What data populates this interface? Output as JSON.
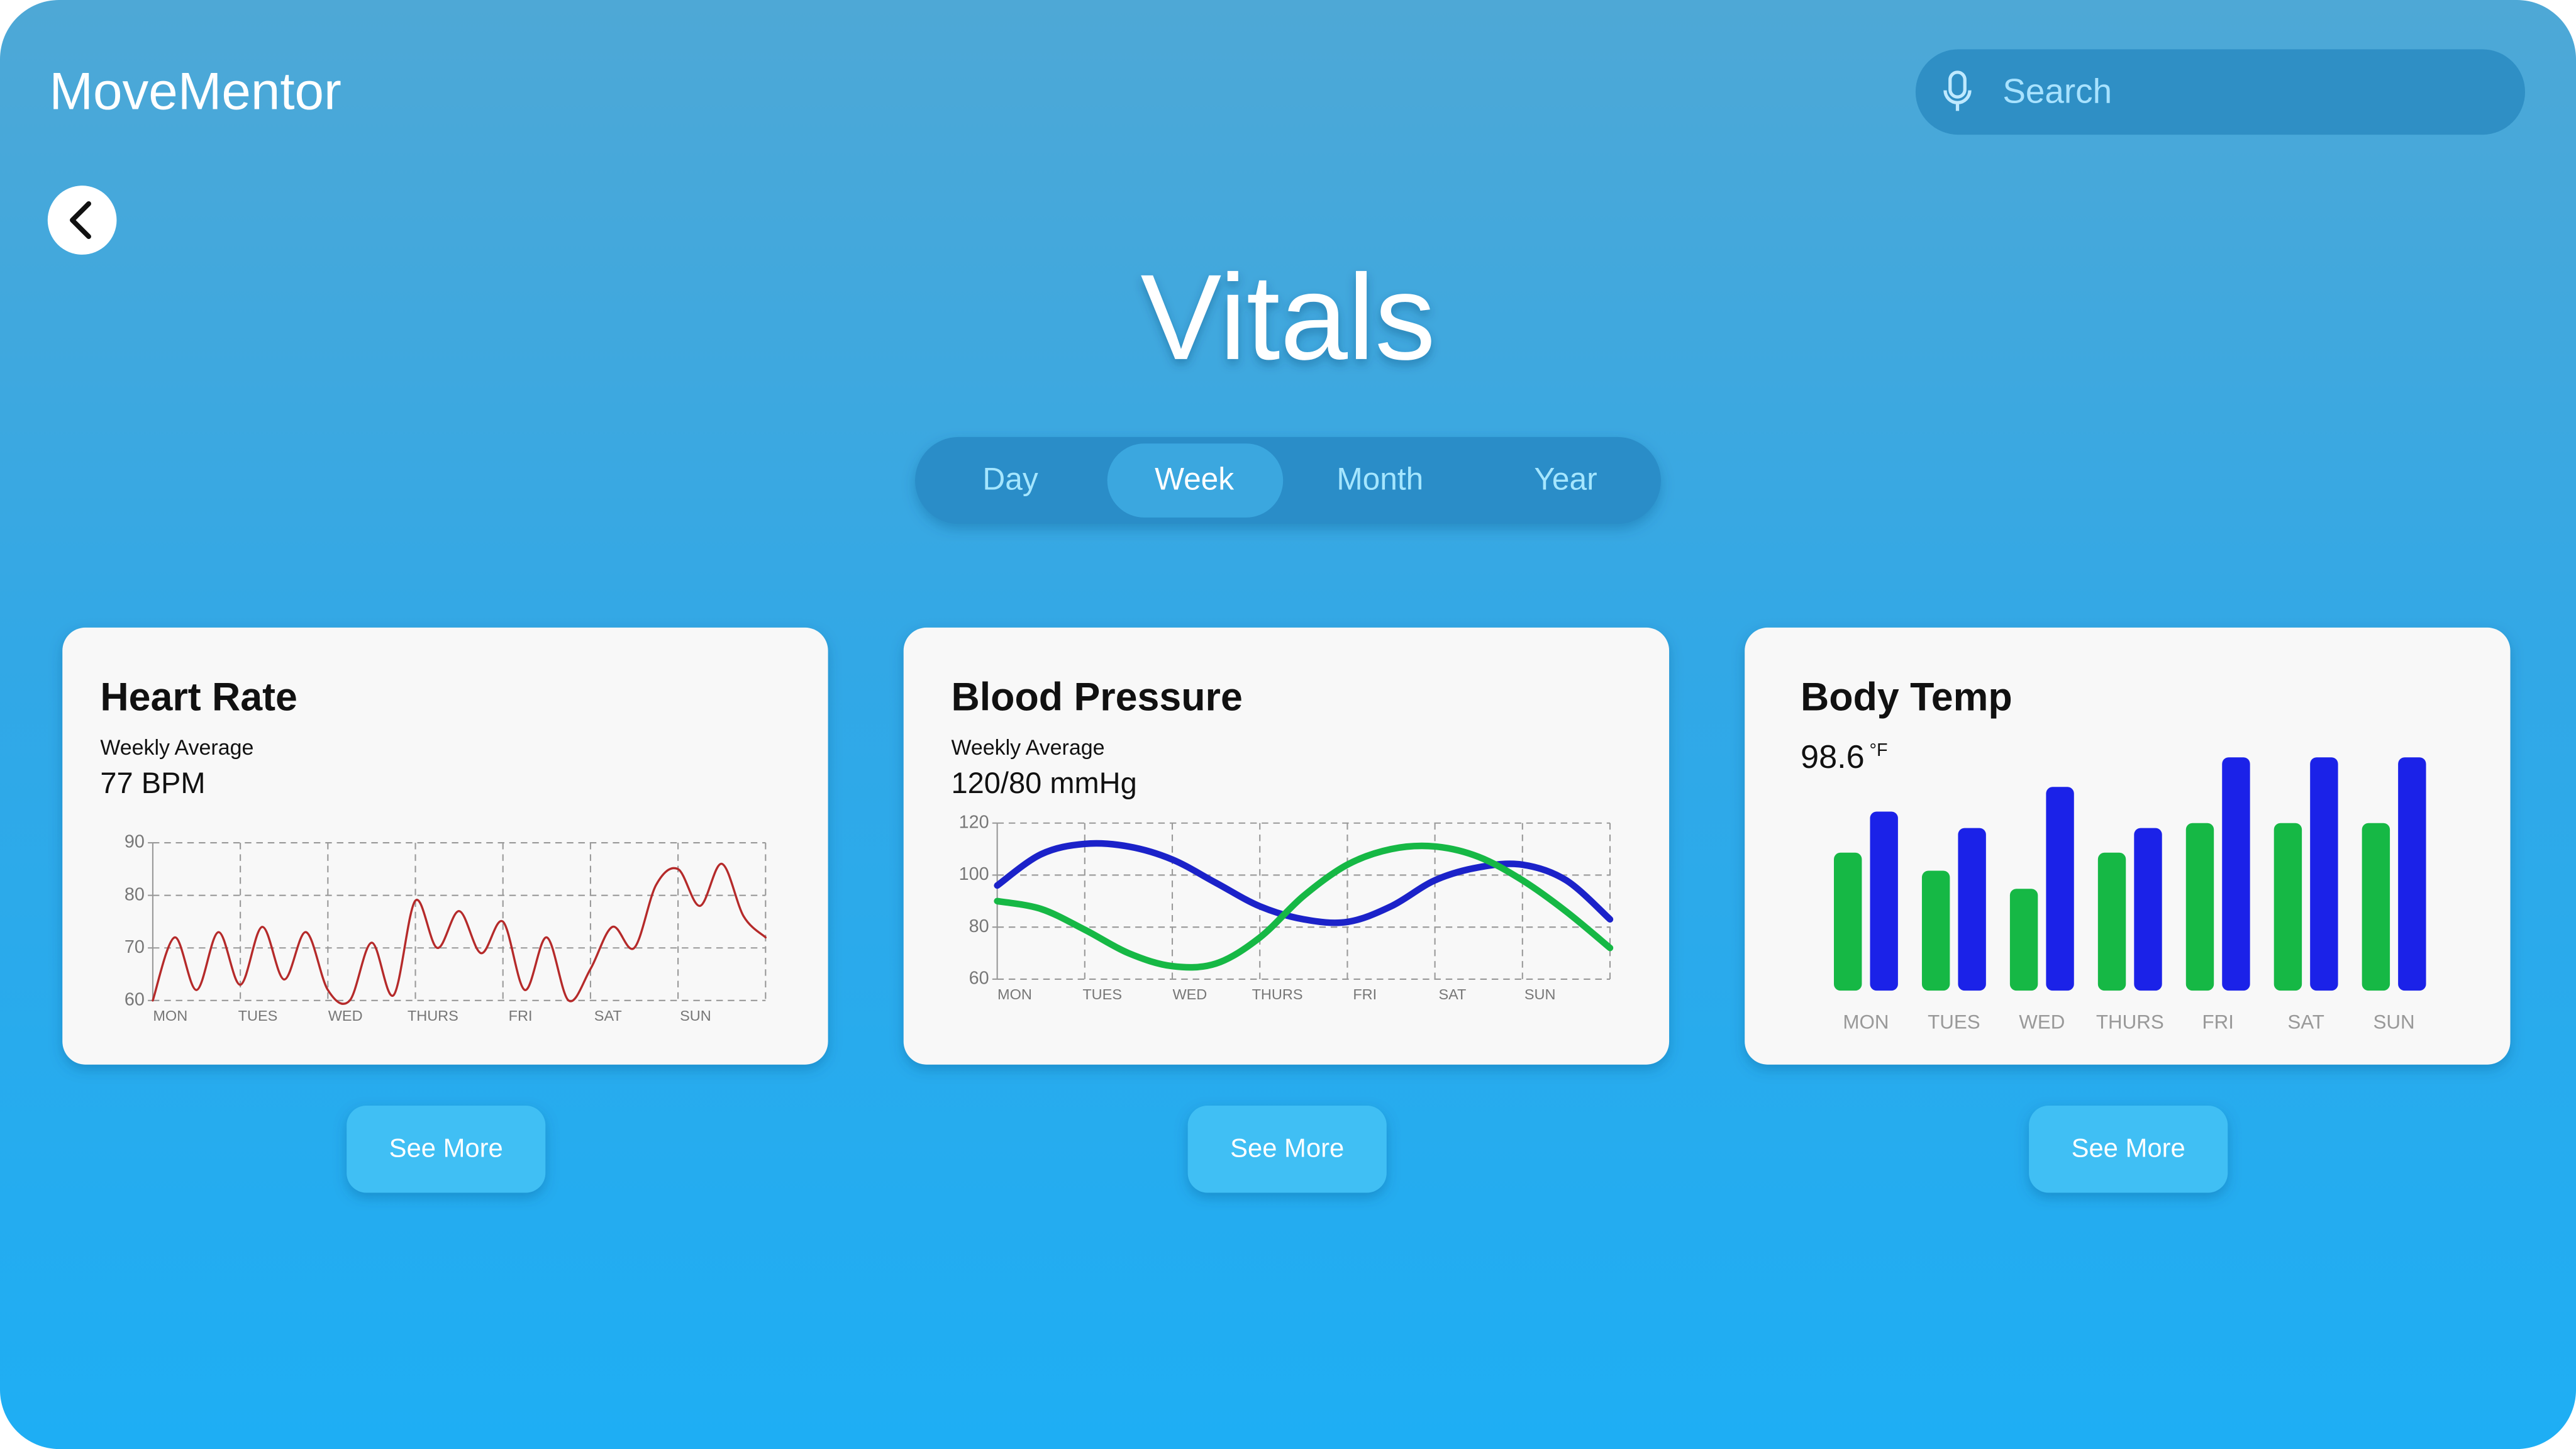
{
  "app_name": "MoveMentor",
  "search_placeholder": "Search",
  "page_title": "Vitals",
  "tabs": [
    "Day",
    "Week",
    "Month",
    "Year"
  ],
  "selected_tab": 1,
  "cards": [
    {
      "title": "Heart Rate",
      "subtitle": "Weekly Average",
      "value": "77 BPM",
      "button": "See More",
      "chart_data": {
        "type": "line",
        "categories": [
          "MON",
          "TUES",
          "WED",
          "THURS",
          "FRI",
          "SAT",
          "SUN"
        ],
        "x": [
          0,
          0.25,
          0.5,
          0.75,
          1,
          1.25,
          1.5,
          1.75,
          2,
          2.25,
          2.5,
          2.75,
          3,
          3.25,
          3.5,
          3.75,
          4,
          4.25,
          4.5,
          4.75,
          5,
          5.25,
          5.5,
          5.75,
          6,
          6.25,
          6.5,
          6.75,
          7
        ],
        "xlim": [
          0,
          7
        ],
        "series": [
          {
            "color": "#b52a2a",
            "values": [
              60,
              72,
              62,
              73,
              63,
              74,
              64,
              73,
              62,
              60,
              71,
              61,
              79,
              70,
              77,
              69,
              75,
              62,
              72,
              60,
              66,
              74,
              70,
              82,
              85,
              78,
              86,
              76,
              72
            ]
          }
        ],
        "ylim": [
          60,
          90
        ],
        "yticks": [
          60,
          70,
          80,
          90
        ],
        "grid": true
      }
    },
    {
      "title": "Blood Pressure",
      "subtitle": "Weekly Average",
      "value": "120/80 mmHg",
      "button": "See More",
      "chart_data": {
        "type": "line",
        "categories": [
          "MON",
          "TUES",
          "WED",
          "THURS",
          "FRI",
          "SAT",
          "SUN"
        ],
        "x": [
          0,
          0.5,
          1,
          1.5,
          2,
          2.5,
          3,
          3.5,
          4,
          4.5,
          5,
          5.5,
          6,
          6.5,
          7
        ],
        "xlim": [
          0,
          7
        ],
        "series": [
          {
            "color": "#1b22c9",
            "values": [
              96,
              108,
              112,
              111,
              106,
              97,
              88,
              83,
              82,
              88,
              98,
              103,
              104,
              98,
              83
            ]
          },
          {
            "color": "#16b845",
            "values": [
              90,
              87,
              79,
              70,
              65,
              66,
              76,
              92,
              104,
              110,
              111,
              107,
              98,
              86,
              72
            ]
          }
        ],
        "ylim": [
          60,
          120
        ],
        "yticks": [
          60,
          80,
          100,
          120
        ],
        "grid": true
      }
    },
    {
      "title": "Body Temp",
      "value": "98.6",
      "unit": "°F",
      "button": "See More",
      "chart_data": {
        "type": "bar",
        "categories": [
          "MON",
          "TUES",
          "WED",
          "THURS",
          "FRI",
          "SAT",
          "SUN"
        ],
        "series": [
          {
            "color": "#16b845",
            "values": [
              84,
              73,
              62,
              84,
              102,
              102,
              102
            ]
          },
          {
            "color": "#1b22e8",
            "values": [
              109,
              99,
              124,
              99,
              142,
              142,
              142
            ]
          }
        ],
        "ylim": [
          0,
          150
        ]
      }
    }
  ]
}
